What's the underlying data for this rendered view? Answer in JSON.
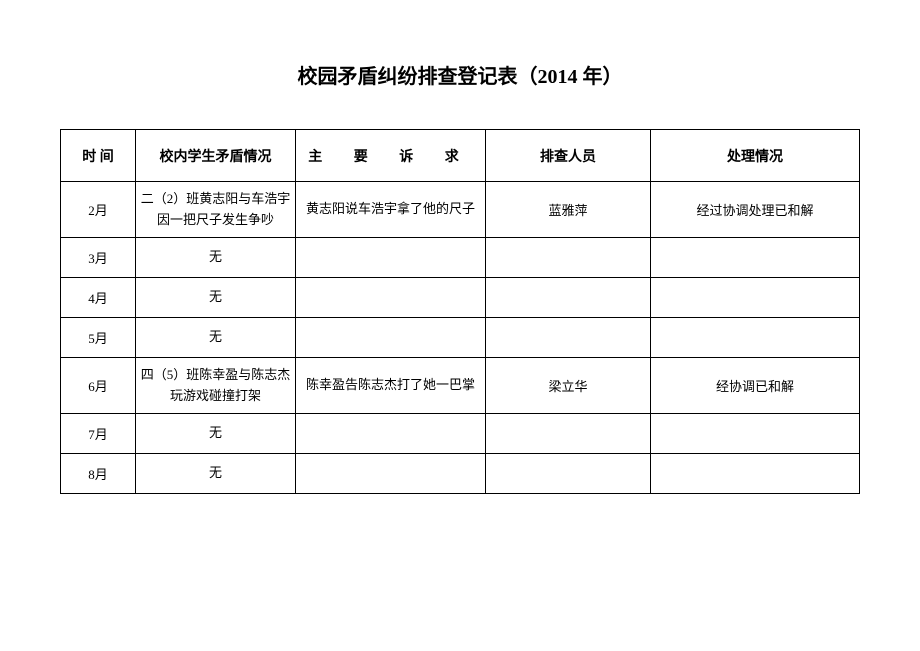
{
  "title": "校园矛盾纠纷排查登记表（2014 年）",
  "table": {
    "columns": {
      "time": "时 间",
      "situation": "校内学生矛盾情况",
      "request": "主 要 诉 求",
      "staff": "排查人员",
      "result": "处理情况"
    },
    "rows": [
      {
        "time": "2月",
        "situation": "二（2）班黄志阳与车浩宇因一把尺子发生争吵",
        "request": "黄志阳说车浩宇拿了他的尺子",
        "staff": "蓝雅萍",
        "result": "经过协调处理已和解",
        "tall": true
      },
      {
        "time": "3月",
        "situation": "无",
        "request": "",
        "staff": "",
        "result": "",
        "tall": false
      },
      {
        "time": "4月",
        "situation": "无",
        "request": "",
        "staff": "",
        "result": "",
        "tall": false
      },
      {
        "time": "5月",
        "situation": "无",
        "request": "",
        "staff": "",
        "result": "",
        "tall": false
      },
      {
        "time": "6月",
        "situation": "四（5）班陈幸盈与陈志杰玩游戏碰撞打架",
        "request": "陈幸盈告陈志杰打了她一巴掌",
        "staff": "梁立华",
        "result": "经协调已和解",
        "tall": true
      },
      {
        "time": "7月",
        "situation": "无",
        "request": "",
        "staff": "",
        "result": "",
        "tall": false
      },
      {
        "time": "8月",
        "situation": "无",
        "request": "",
        "staff": "",
        "result": "",
        "tall": false
      }
    ]
  }
}
